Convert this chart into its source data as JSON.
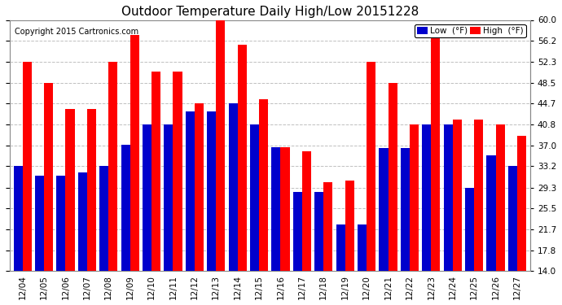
{
  "title": "Outdoor Temperature Daily High/Low 20151228",
  "copyright": "Copyright 2015 Cartronics.com",
  "dates": [
    "12/04",
    "12/05",
    "12/06",
    "12/07",
    "12/08",
    "12/09",
    "12/10",
    "12/11",
    "12/12",
    "12/13",
    "12/14",
    "12/15",
    "12/16",
    "12/17",
    "12/18",
    "12/19",
    "12/20",
    "12/21",
    "12/22",
    "12/23",
    "12/24",
    "12/25",
    "12/26",
    "12/27"
  ],
  "highs": [
    52.3,
    48.5,
    43.7,
    43.7,
    52.3,
    57.2,
    50.5,
    50.5,
    44.7,
    59.9,
    55.4,
    45.5,
    36.7,
    36.0,
    30.2,
    30.5,
    52.3,
    48.5,
    40.8,
    57.2,
    41.8,
    41.8,
    40.8,
    38.7
  ],
  "lows": [
    33.2,
    31.5,
    31.5,
    32.1,
    33.2,
    37.1,
    40.8,
    40.8,
    43.3,
    43.3,
    44.8,
    40.8,
    36.7,
    28.5,
    28.5,
    22.5,
    22.5,
    36.5,
    36.5,
    40.8,
    40.8,
    29.3,
    35.2,
    33.2
  ],
  "high_color": "#ff0000",
  "low_color": "#0000cc",
  "background_color": "#ffffff",
  "grid_color": "#c0c0c0",
  "ymin": 14.0,
  "ymax": 60.0,
  "yticks": [
    14.0,
    17.8,
    21.7,
    25.5,
    29.3,
    33.2,
    37.0,
    40.8,
    44.7,
    48.5,
    52.3,
    56.2,
    60.0
  ],
  "legend_low_label": "Low  (°F)",
  "legend_high_label": "High  (°F)",
  "title_fontsize": 11,
  "copyright_fontsize": 7,
  "tick_fontsize": 7.5
}
